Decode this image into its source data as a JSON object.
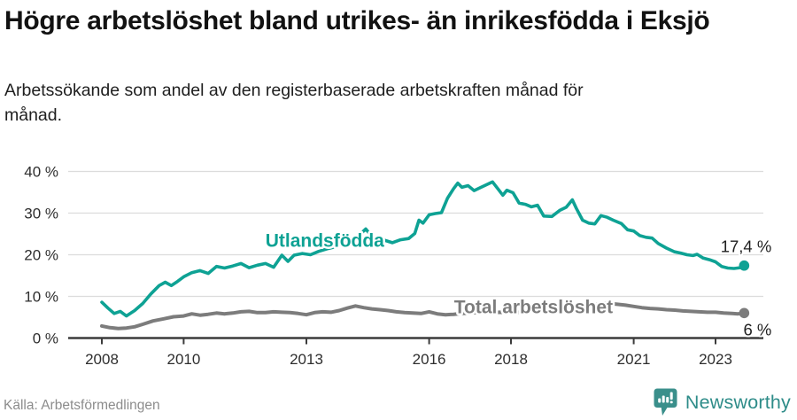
{
  "header": {
    "title": "Högre arbetslöshet bland utrikes- än inrikesfödda i Eksjö",
    "subtitle": "Arbetssökande som andel av den registerbaserade arbetskraften månad för månad."
  },
  "footer": {
    "source": "Källa: Arbetsförmedlingen",
    "brand": "Newsworthy",
    "brand_icon": "newsworthy-pin-barchart-icon"
  },
  "colors": {
    "accent_teal": "#0ea294",
    "series_gray": "#7c7c7c",
    "grid": "#dcdcdc",
    "axis": "#3b3b3b",
    "text_dark": "#1f1f1f",
    "text_muted": "#8c8c8c",
    "brand_teal": "#2e8c89"
  },
  "chart_data": {
    "type": "line",
    "grid": "horizontal",
    "legend": "inline-labels",
    "x_axis": {
      "unit": "year",
      "ticks": [
        2008,
        2010,
        2013,
        2016,
        2018,
        2021,
        2023
      ],
      "range": [
        2007.8,
        2024.2
      ]
    },
    "y_axis": {
      "unit": "percent",
      "tick_labels": [
        "0 %",
        "10 %",
        "20 %",
        "30 %",
        "40 %"
      ],
      "tick_values": [
        0,
        10,
        20,
        30,
        40
      ],
      "range": [
        0,
        42
      ]
    },
    "series": [
      {
        "name": "Utlandsfödda",
        "color": "#0ea294",
        "width": 3.6,
        "label_at": [
          2013.45,
          23.4
        ],
        "end_label": "17,4 %",
        "end_label_position": "above",
        "end_value": 17.4,
        "points": [
          [
            2008.0,
            8.6
          ],
          [
            2008.15,
            7.2
          ],
          [
            2008.3,
            5.9
          ],
          [
            2008.45,
            6.4
          ],
          [
            2008.6,
            5.3
          ],
          [
            2008.8,
            6.6
          ],
          [
            2009.0,
            8.3
          ],
          [
            2009.2,
            10.6
          ],
          [
            2009.4,
            12.6
          ],
          [
            2009.55,
            13.4
          ],
          [
            2009.7,
            12.6
          ],
          [
            2009.85,
            13.6
          ],
          [
            2010.0,
            14.7
          ],
          [
            2010.2,
            15.7
          ],
          [
            2010.4,
            16.2
          ],
          [
            2010.6,
            15.5
          ],
          [
            2010.8,
            17.2
          ],
          [
            2011.0,
            16.8
          ],
          [
            2011.2,
            17.3
          ],
          [
            2011.4,
            17.9
          ],
          [
            2011.6,
            16.9
          ],
          [
            2011.8,
            17.5
          ],
          [
            2012.0,
            17.9
          ],
          [
            2012.2,
            17.0
          ],
          [
            2012.4,
            19.9
          ],
          [
            2012.55,
            18.4
          ],
          [
            2012.7,
            19.9
          ],
          [
            2012.9,
            20.3
          ],
          [
            2013.1,
            20.0
          ],
          [
            2013.3,
            20.8
          ],
          [
            2013.5,
            21.4
          ],
          [
            2013.7,
            21.9
          ],
          [
            2013.9,
            22.6
          ],
          [
            2014.1,
            23.4
          ],
          [
            2014.3,
            24.8
          ],
          [
            2014.45,
            26.2
          ],
          [
            2014.6,
            24.4
          ],
          [
            2014.75,
            23.7
          ],
          [
            2014.9,
            23.5
          ],
          [
            2015.1,
            22.9
          ],
          [
            2015.3,
            23.6
          ],
          [
            2015.5,
            23.9
          ],
          [
            2015.65,
            25.1
          ],
          [
            2015.75,
            28.3
          ],
          [
            2015.85,
            27.6
          ],
          [
            2016.0,
            29.6
          ],
          [
            2016.15,
            29.9
          ],
          [
            2016.3,
            30.1
          ],
          [
            2016.45,
            33.6
          ],
          [
            2016.6,
            35.9
          ],
          [
            2016.7,
            37.2
          ],
          [
            2016.8,
            36.2
          ],
          [
            2016.95,
            36.6
          ],
          [
            2017.1,
            35.4
          ],
          [
            2017.25,
            36.1
          ],
          [
            2017.4,
            36.8
          ],
          [
            2017.55,
            37.5
          ],
          [
            2017.7,
            35.6
          ],
          [
            2017.8,
            34.3
          ],
          [
            2017.9,
            35.5
          ],
          [
            2018.05,
            34.9
          ],
          [
            2018.2,
            32.4
          ],
          [
            2018.35,
            32.1
          ],
          [
            2018.5,
            31.5
          ],
          [
            2018.65,
            31.9
          ],
          [
            2018.8,
            29.3
          ],
          [
            2019.0,
            29.2
          ],
          [
            2019.2,
            30.7
          ],
          [
            2019.35,
            31.4
          ],
          [
            2019.5,
            33.2
          ],
          [
            2019.6,
            31.1
          ],
          [
            2019.75,
            28.3
          ],
          [
            2019.9,
            27.6
          ],
          [
            2020.05,
            27.4
          ],
          [
            2020.2,
            29.4
          ],
          [
            2020.35,
            29.0
          ],
          [
            2020.5,
            28.3
          ],
          [
            2020.7,
            27.5
          ],
          [
            2020.85,
            26.0
          ],
          [
            2021.0,
            25.7
          ],
          [
            2021.15,
            24.6
          ],
          [
            2021.3,
            24.2
          ],
          [
            2021.45,
            24.0
          ],
          [
            2021.6,
            22.7
          ],
          [
            2021.8,
            21.6
          ],
          [
            2022.0,
            20.7
          ],
          [
            2022.15,
            20.4
          ],
          [
            2022.3,
            20.0
          ],
          [
            2022.45,
            19.8
          ],
          [
            2022.55,
            20.1
          ],
          [
            2022.7,
            19.2
          ],
          [
            2022.85,
            18.8
          ],
          [
            2023.0,
            18.3
          ],
          [
            2023.15,
            17.2
          ],
          [
            2023.3,
            16.8
          ],
          [
            2023.45,
            16.7
          ],
          [
            2023.6,
            16.9
          ],
          [
            2023.7,
            17.4
          ]
        ]
      },
      {
        "name": "Total arbetslöshet",
        "color": "#7c7c7c",
        "width": 4,
        "label_at": [
          2018.55,
          7.4
        ],
        "end_label": "6 %",
        "end_label_position": "below",
        "end_value": 6,
        "points": [
          [
            2008.0,
            2.9
          ],
          [
            2008.2,
            2.5
          ],
          [
            2008.4,
            2.3
          ],
          [
            2008.6,
            2.4
          ],
          [
            2008.8,
            2.7
          ],
          [
            2009.0,
            3.3
          ],
          [
            2009.25,
            4.1
          ],
          [
            2009.5,
            4.6
          ],
          [
            2009.75,
            5.1
          ],
          [
            2010.0,
            5.3
          ],
          [
            2010.2,
            5.8
          ],
          [
            2010.4,
            5.5
          ],
          [
            2010.6,
            5.7
          ],
          [
            2010.8,
            6.0
          ],
          [
            2011.0,
            5.8
          ],
          [
            2011.2,
            6.0
          ],
          [
            2011.4,
            6.3
          ],
          [
            2011.6,
            6.4
          ],
          [
            2011.8,
            6.1
          ],
          [
            2012.0,
            6.1
          ],
          [
            2012.2,
            6.3
          ],
          [
            2012.4,
            6.2
          ],
          [
            2012.6,
            6.1
          ],
          [
            2012.8,
            5.9
          ],
          [
            2013.0,
            5.6
          ],
          [
            2013.2,
            6.1
          ],
          [
            2013.4,
            6.3
          ],
          [
            2013.6,
            6.2
          ],
          [
            2013.8,
            6.6
          ],
          [
            2014.0,
            7.2
          ],
          [
            2014.2,
            7.7
          ],
          [
            2014.4,
            7.3
          ],
          [
            2014.6,
            7.0
          ],
          [
            2014.8,
            6.8
          ],
          [
            2015.0,
            6.6
          ],
          [
            2015.2,
            6.3
          ],
          [
            2015.4,
            6.1
          ],
          [
            2015.6,
            6.0
          ],
          [
            2015.8,
            5.9
          ],
          [
            2016.0,
            6.3
          ],
          [
            2016.2,
            5.8
          ],
          [
            2016.4,
            5.6
          ],
          [
            2016.6,
            5.7
          ],
          [
            2016.8,
            5.9
          ],
          [
            2017.0,
            6.0
          ],
          [
            2017.25,
            6.2
          ],
          [
            2017.5,
            6.1
          ],
          [
            2017.75,
            6.2
          ],
          [
            2018.0,
            6.1
          ],
          [
            2018.25,
            6.2
          ],
          [
            2018.5,
            6.4
          ],
          [
            2018.75,
            6.5
          ],
          [
            2019.0,
            6.5
          ],
          [
            2019.25,
            6.7
          ],
          [
            2019.5,
            6.8
          ],
          [
            2019.75,
            7.1
          ],
          [
            2020.0,
            7.7
          ],
          [
            2020.2,
            8.4
          ],
          [
            2020.4,
            8.3
          ],
          [
            2020.6,
            8.1
          ],
          [
            2020.8,
            7.9
          ],
          [
            2021.0,
            7.6
          ],
          [
            2021.2,
            7.3
          ],
          [
            2021.4,
            7.1
          ],
          [
            2021.6,
            7.0
          ],
          [
            2021.8,
            6.8
          ],
          [
            2022.0,
            6.7
          ],
          [
            2022.2,
            6.5
          ],
          [
            2022.4,
            6.4
          ],
          [
            2022.6,
            6.3
          ],
          [
            2022.8,
            6.2
          ],
          [
            2023.0,
            6.2
          ],
          [
            2023.2,
            6.0
          ],
          [
            2023.4,
            5.9
          ],
          [
            2023.55,
            5.8
          ],
          [
            2023.7,
            6.0
          ]
        ]
      }
    ]
  }
}
